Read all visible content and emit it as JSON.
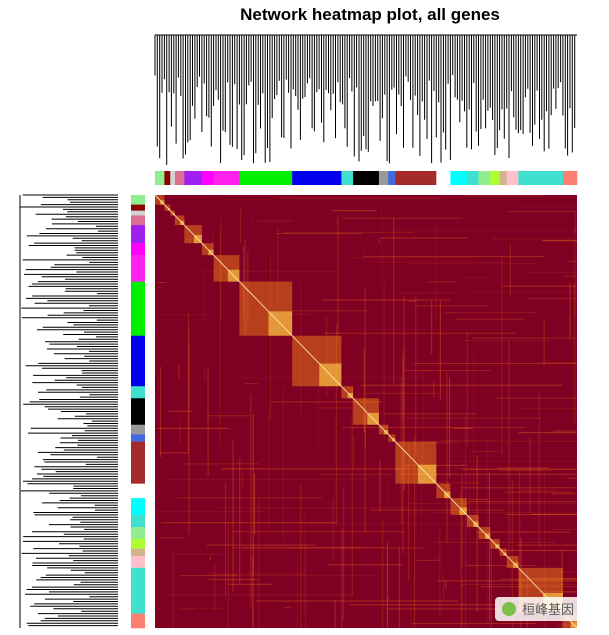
{
  "chart_data": {
    "type": "heatmap",
    "title": "Network heatmap plot, all genes",
    "watermark": "桓峰基因",
    "background_color": "#7f0022",
    "highlight_color": "#ffd24a",
    "modules": [
      {
        "color": "#90ee90",
        "size": 8
      },
      {
        "color": "#8b0000",
        "size": 5
      },
      {
        "color": "#d3d3d3",
        "size": 4
      },
      {
        "color": "#db7093",
        "size": 8
      },
      {
        "color": "#a020f0",
        "size": 15
      },
      {
        "color": "#ff00ff",
        "size": 10
      },
      {
        "color": "#ff22ee",
        "size": 22
      },
      {
        "color": "#00ee00",
        "size": 45
      },
      {
        "color": "#0000ee",
        "size": 42
      },
      {
        "color": "#40e0d0",
        "size": 10
      },
      {
        "color": "#000000",
        "size": 22
      },
      {
        "color": "#999999",
        "size": 8
      },
      {
        "color": "#4169e1",
        "size": 6
      },
      {
        "color": "#a52a2a",
        "size": 35
      },
      {
        "color": "#ffffff",
        "size": 12
      },
      {
        "color": "#00ffff",
        "size": 14
      },
      {
        "color": "#40e0d0",
        "size": 10
      },
      {
        "color": "#90ee90",
        "size": 10
      },
      {
        "color": "#adff2f",
        "size": 8
      },
      {
        "color": "#d2b48c",
        "size": 6
      },
      {
        "color": "#ffc0cb",
        "size": 10
      },
      {
        "color": "#40e0d0",
        "size": 38
      },
      {
        "color": "#fa8072",
        "size": 12
      }
    ]
  }
}
